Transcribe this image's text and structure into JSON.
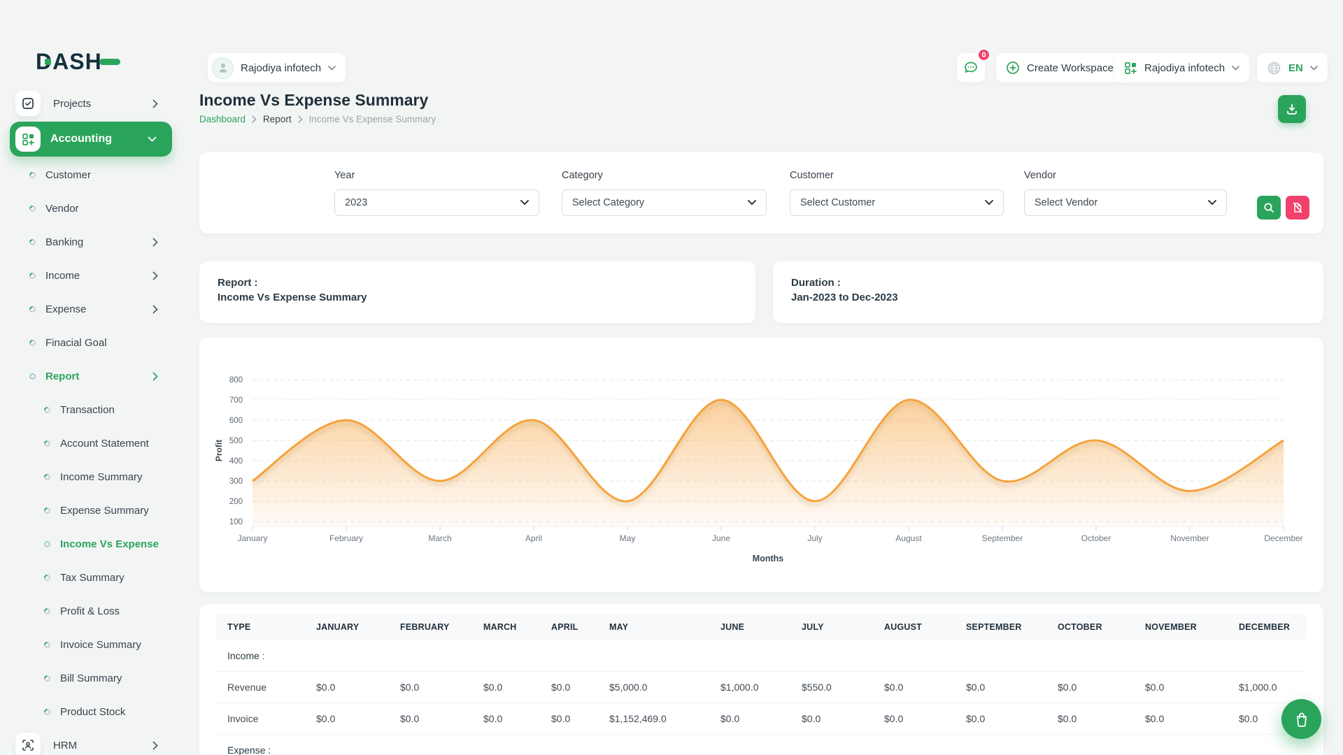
{
  "brand": {
    "name": "DASH"
  },
  "header": {
    "workspace_selector": {
      "label": "Rajodiya infotech"
    },
    "messages_badge": "0",
    "create_workspace_label": "Create Workspace",
    "company_selector": {
      "label": "Rajodiya infotech"
    },
    "language": {
      "code": "EN"
    }
  },
  "sidebar": {
    "items": [
      {
        "label": "Projects"
      },
      {
        "label": "Accounting"
      },
      {
        "label": "Customer"
      },
      {
        "label": "Vendor"
      },
      {
        "label": "Banking"
      },
      {
        "label": "Income"
      },
      {
        "label": "Expense"
      },
      {
        "label": "Finacial Goal"
      },
      {
        "label": "Report"
      },
      {
        "label": "Transaction"
      },
      {
        "label": "Account Statement"
      },
      {
        "label": "Income Summary"
      },
      {
        "label": "Expense Summary"
      },
      {
        "label": "Income Vs Expense"
      },
      {
        "label": "Tax Summary"
      },
      {
        "label": "Profit & Loss"
      },
      {
        "label": "Invoice Summary"
      },
      {
        "label": "Bill Summary"
      },
      {
        "label": "Product Stock"
      },
      {
        "label": "HRM"
      }
    ]
  },
  "page": {
    "title": "Income Vs Expense Summary",
    "breadcrumb": {
      "items": [
        "Dashboard",
        "Report",
        "Income Vs Expense Summary"
      ]
    }
  },
  "filters": {
    "year": {
      "label": "Year",
      "value": "2023"
    },
    "category": {
      "label": "Category",
      "value": "Select Category"
    },
    "customer": {
      "label": "Customer",
      "value": "Select Customer"
    },
    "vendor": {
      "label": "Vendor",
      "value": "Select Vendor"
    }
  },
  "summary_cards": {
    "report": {
      "label": "Report :",
      "value": "Income Vs Expense Summary"
    },
    "duration": {
      "label": "Duration :",
      "value": "Jan-2023 to Dec-2023"
    }
  },
  "chart_data": {
    "type": "area",
    "x": [
      "January",
      "February",
      "March",
      "April",
      "May",
      "June",
      "July",
      "August",
      "September",
      "October",
      "November",
      "December"
    ],
    "series": [
      {
        "name": "Profit",
        "values": [
          300,
          600,
          300,
          600,
          200,
          700,
          200,
          700,
          300,
          500,
          250,
          500
        ]
      }
    ],
    "xlabel": "Months",
    "ylabel": "Profit",
    "yticks": [
      100,
      200,
      300,
      400,
      500,
      600,
      700,
      800
    ],
    "ylim": [
      100,
      800
    ],
    "grid": true,
    "legend": false,
    "line_color": "#f6a23b"
  },
  "table": {
    "headers": [
      "TYPE",
      "JANUARY",
      "FEBRUARY",
      "MARCH",
      "APRIL",
      "MAY",
      "JUNE",
      "JULY",
      "AUGUST",
      "SEPTEMBER",
      "OCTOBER",
      "NOVEMBER",
      "DECEMBER"
    ],
    "sections": [
      {
        "label": "Income :",
        "rows": [
          {
            "type": "Revenue",
            "values": [
              "$0.0",
              "$0.0",
              "$0.0",
              "$0.0",
              "$5,000.0",
              "$1,000.0",
              "$550.0",
              "$0.0",
              "$0.0",
              "$0.0",
              "$0.0",
              "$1,000.0"
            ]
          },
          {
            "type": "Invoice",
            "values": [
              "$0.0",
              "$0.0",
              "$0.0",
              "$0.0",
              "$1,152,469.0",
              "$0.0",
              "$0.0",
              "$0.0",
              "$0.0",
              "$0.0",
              "$0.0",
              "$0.0"
            ]
          }
        ]
      },
      {
        "label": "Expense :",
        "rows": []
      }
    ]
  },
  "colors": {
    "primary": "#2ba45b",
    "danger": "#f0416c",
    "chart_line": "#f6a23b",
    "chart_fill": "#f6a23b"
  }
}
